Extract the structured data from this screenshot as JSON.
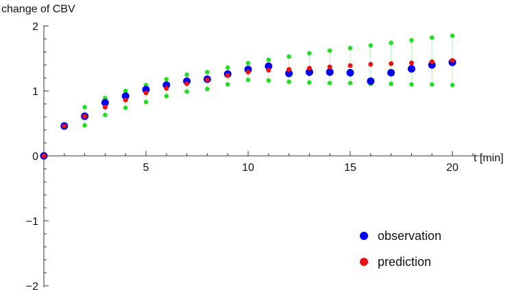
{
  "chart_data": {
    "type": "scatter",
    "title": "",
    "xlabel": "t [min]",
    "ylabel": "change of CBV",
    "xlim": [
      0,
      21.5
    ],
    "ylim": [
      -2,
      2
    ],
    "x_ticks": [
      5,
      10,
      15,
      20
    ],
    "x_tick_labels": [
      "5",
      "10",
      "15",
      "20"
    ],
    "y_ticks": [
      -2,
      -1,
      0,
      1,
      2
    ],
    "y_tick_labels": [
      "−2",
      "−1",
      "0",
      "1",
      "2"
    ],
    "grid": false,
    "legend_position": "bottom-right",
    "x": [
      0,
      1,
      2,
      3,
      4,
      5,
      6,
      7,
      8,
      9,
      10,
      11,
      12,
      13,
      14,
      15,
      16,
      17,
      18,
      19,
      20
    ],
    "series": [
      {
        "name": "observation",
        "color": "#0000ee",
        "values": [
          0.0,
          0.46,
          0.61,
          0.82,
          0.92,
          1.02,
          1.09,
          1.15,
          1.18,
          1.26,
          1.33,
          1.38,
          1.27,
          1.29,
          1.29,
          1.28,
          1.15,
          1.28,
          1.34,
          1.4,
          1.44
        ]
      },
      {
        "name": "prediction",
        "color": "#ee1111",
        "values": [
          0.0,
          0.46,
          0.61,
          0.75,
          0.86,
          0.97,
          1.04,
          1.11,
          1.17,
          1.24,
          1.29,
          1.32,
          1.33,
          1.35,
          1.37,
          1.39,
          1.41,
          1.42,
          1.43,
          1.45,
          1.47
        ]
      },
      {
        "color": "#22dd22",
        "values_upper": [
          0.0,
          0.46,
          0.75,
          0.89,
          1.0,
          1.09,
          1.18,
          1.25,
          1.29,
          1.36,
          1.43,
          1.48,
          1.53,
          1.58,
          1.62,
          1.66,
          1.7,
          1.74,
          1.78,
          1.82,
          1.85
        ],
        "values_lower": [
          0.0,
          0.46,
          0.47,
          0.63,
          0.74,
          0.83,
          0.92,
          0.99,
          1.03,
          1.1,
          1.17,
          1.16,
          1.14,
          1.13,
          1.12,
          1.12,
          1.11,
          1.11,
          1.1,
          1.1,
          1.09
        ]
      }
    ]
  }
}
